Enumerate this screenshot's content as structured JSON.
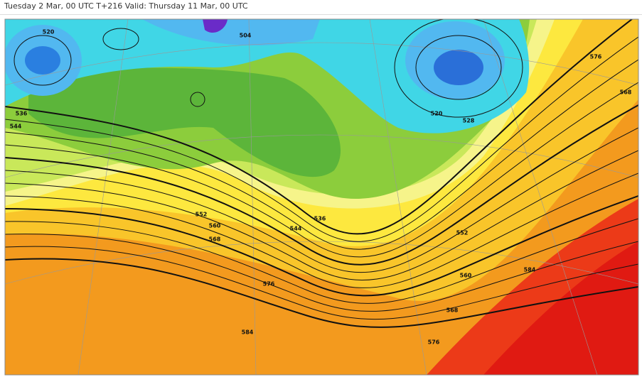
{
  "header": {
    "title": "Tuesday 2 Mar, 00 UTC T+216 Valid: Thursday 11 Mar, 00 UTC"
  },
  "map": {
    "contour_labels": [
      "520",
      "504",
      "536",
      "544",
      "552",
      "560",
      "568",
      "576",
      "584",
      "520",
      "528",
      "536",
      "544",
      "552",
      "560",
      "568",
      "576",
      "584",
      "576",
      "568"
    ]
  }
}
